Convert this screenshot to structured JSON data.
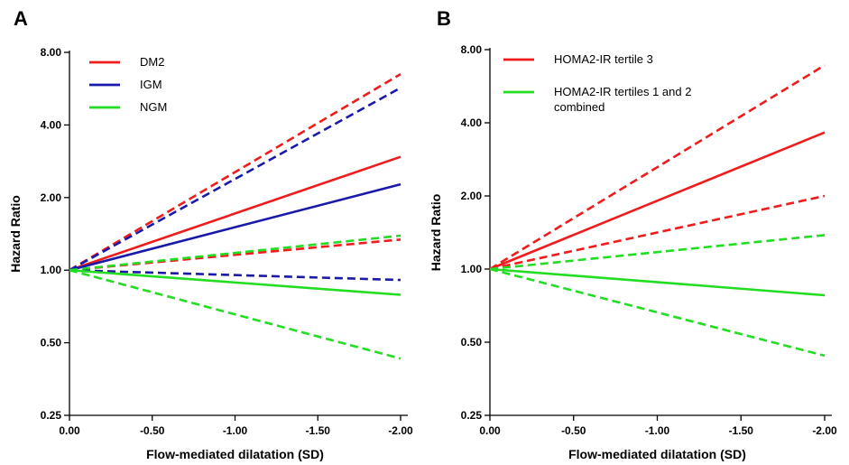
{
  "chart_data": [
    {
      "type": "line",
      "panel": "A",
      "xlabel": "Flow-mediated dilatation (SD)",
      "ylabel": "Hazard Ratio",
      "xlim": [
        0,
        -2
      ],
      "ylim": [
        0.25,
        8
      ],
      "y_scale": "log",
      "x_ticks": [
        "0.00",
        "-0.50",
        "-1.00",
        "-1.50",
        "-2.00"
      ],
      "y_ticks": [
        "0.25",
        "0.50",
        "1.00",
        "2.00",
        "4.00",
        "8.00"
      ],
      "legend_position": "top-left",
      "legend": [
        {
          "name": "DM2",
          "color": "#ee1c1c"
        },
        {
          "name": "IGM",
          "color": "#1a1aaa"
        },
        {
          "name": "NGM",
          "color": "#22dd22"
        }
      ],
      "series": [
        {
          "group": "DM2",
          "kind": "estimate",
          "style": "solid",
          "color": "#ee1c1c",
          "x": [
            0,
            -2
          ],
          "y": [
            1.0,
            2.95
          ]
        },
        {
          "group": "DM2",
          "kind": "upper-ci",
          "style": "dashed",
          "color": "#ee1c1c",
          "x": [
            0,
            -2
          ],
          "y": [
            1.0,
            6.5
          ]
        },
        {
          "group": "DM2",
          "kind": "lower-ci",
          "style": "dashed",
          "color": "#ee1c1c",
          "x": [
            0,
            -2
          ],
          "y": [
            1.0,
            1.34
          ]
        },
        {
          "group": "IGM",
          "kind": "estimate",
          "style": "solid",
          "color": "#1a1aaa",
          "x": [
            0,
            -2
          ],
          "y": [
            1.0,
            2.27
          ]
        },
        {
          "group": "IGM",
          "kind": "upper-ci",
          "style": "dashed",
          "color": "#1a1aaa",
          "x": [
            0,
            -2
          ],
          "y": [
            1.0,
            5.7
          ]
        },
        {
          "group": "IGM",
          "kind": "lower-ci",
          "style": "dashed",
          "color": "#1a1aaa",
          "x": [
            0,
            -2
          ],
          "y": [
            1.0,
            0.91
          ]
        },
        {
          "group": "NGM",
          "kind": "estimate",
          "style": "solid",
          "color": "#22dd22",
          "x": [
            0,
            -2
          ],
          "y": [
            1.0,
            0.79
          ]
        },
        {
          "group": "NGM",
          "kind": "upper-ci",
          "style": "dashed",
          "color": "#22dd22",
          "x": [
            0,
            -2
          ],
          "y": [
            1.0,
            1.39
          ]
        },
        {
          "group": "NGM",
          "kind": "lower-ci",
          "style": "dashed",
          "color": "#22dd22",
          "x": [
            0,
            -2
          ],
          "y": [
            1.0,
            0.43
          ]
        }
      ]
    },
    {
      "type": "line",
      "panel": "B",
      "xlabel": "Flow-mediated dilatation (SD)",
      "ylabel": "Hazard Ratio",
      "xlim": [
        0,
        -2
      ],
      "ylim": [
        0.25,
        8
      ],
      "y_scale": "log",
      "x_ticks": [
        "0.00",
        "-0.50",
        "-1.00",
        "-1.50",
        "-2.00"
      ],
      "y_ticks": [
        "0.25",
        "0.50",
        "1.00",
        "2.00",
        "4.00",
        "8.00"
      ],
      "legend_position": "top-left",
      "legend": [
        {
          "name": "HOMA2-IR tertile 3",
          "color": "#ee1c1c"
        },
        {
          "name": "HOMA2-IR tertiles 1 and 2",
          "name_line2": "combined",
          "color": "#22dd22"
        }
      ],
      "series": [
        {
          "group": "HOMA2-IR tertile 3",
          "kind": "estimate",
          "style": "solid",
          "color": "#ee1c1c",
          "x": [
            0,
            -2
          ],
          "y": [
            1.0,
            3.65
          ]
        },
        {
          "group": "HOMA2-IR tertile 3",
          "kind": "upper-ci",
          "style": "dashed",
          "color": "#ee1c1c",
          "x": [
            0,
            -2
          ],
          "y": [
            1.0,
            6.9
          ]
        },
        {
          "group": "HOMA2-IR tertile 3",
          "kind": "lower-ci",
          "style": "dashed",
          "color": "#ee1c1c",
          "x": [
            0,
            -2
          ],
          "y": [
            1.0,
            2.0
          ]
        },
        {
          "group": "HOMA2-IR tertiles 1 and 2 combined",
          "kind": "estimate",
          "style": "solid",
          "color": "#22dd22",
          "x": [
            0,
            -2
          ],
          "y": [
            1.0,
            0.78
          ]
        },
        {
          "group": "HOMA2-IR tertiles 1 and 2 combined",
          "kind": "upper-ci",
          "style": "dashed",
          "color": "#22dd22",
          "x": [
            0,
            -2
          ],
          "y": [
            1.0,
            1.38
          ]
        },
        {
          "group": "HOMA2-IR tertiles 1 and 2 combined",
          "kind": "lower-ci",
          "style": "dashed",
          "color": "#22dd22",
          "x": [
            0,
            -2
          ],
          "y": [
            1.0,
            0.44
          ]
        }
      ]
    }
  ]
}
